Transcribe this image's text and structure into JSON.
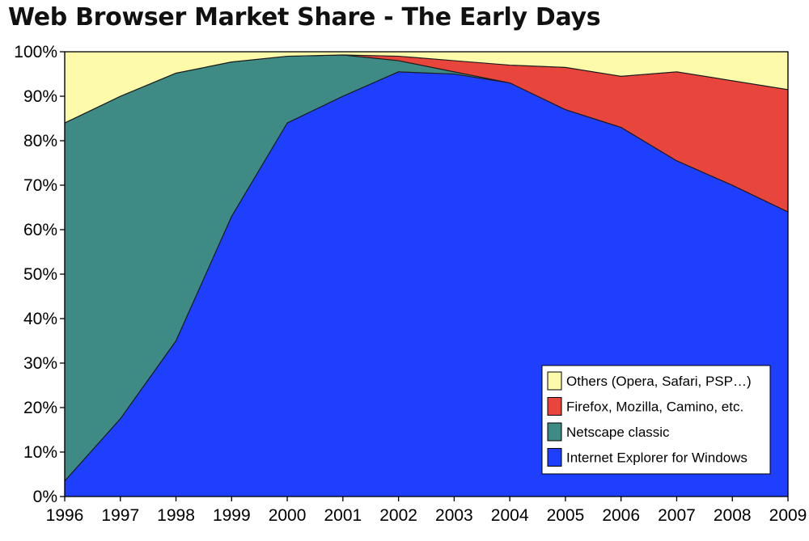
{
  "title": "Web Browser Market Share - The Early Days",
  "chart_data": {
    "type": "area",
    "stacked": true,
    "x": [
      1996,
      1997,
      1998,
      1999,
      2000,
      2001,
      2002,
      2003,
      2004,
      2005,
      2006,
      2007,
      2008,
      2009
    ],
    "ylim": [
      0,
      100
    ],
    "yticks": [
      "0%",
      "10%",
      "20%",
      "30%",
      "40%",
      "50%",
      "60%",
      "70%",
      "80%",
      "90%",
      "100%"
    ],
    "xticks": [
      "1996",
      "1997",
      "1998",
      "1999",
      "2000",
      "2001",
      "2002",
      "2003",
      "2004",
      "2005",
      "2006",
      "2007",
      "2008",
      "2009"
    ],
    "legend_position": "bottom-right",
    "series": [
      {
        "name": "Internet Explorer for Windows",
        "color": "#1f3fff",
        "values": [
          3.5,
          17.5,
          35,
          63,
          84,
          90,
          95.5,
          95,
          93,
          87,
          83,
          75.5,
          70,
          64
        ]
      },
      {
        "name": "Netscape classic",
        "color": "#3e8a84",
        "values": [
          80.5,
          72.5,
          60.2,
          34.7,
          15,
          9.3,
          2.5,
          0.5,
          0,
          0,
          0,
          0,
          0,
          0
        ]
      },
      {
        "name": "Firefox, Mozilla, Camino, etc.",
        "color": "#e8463d",
        "values": [
          0,
          0,
          0,
          0,
          0,
          0,
          1,
          2.5,
          4,
          9.5,
          11.5,
          20,
          23.5,
          27.5
        ]
      },
      {
        "name": "Others (Opera, Safari, PSP…)",
        "color": "#fdfbaa",
        "values": [
          16,
          10,
          4.8,
          2.3,
          1,
          0.7,
          1,
          2,
          3,
          3.5,
          5.5,
          4.5,
          6.5,
          8.5
        ]
      }
    ]
  }
}
